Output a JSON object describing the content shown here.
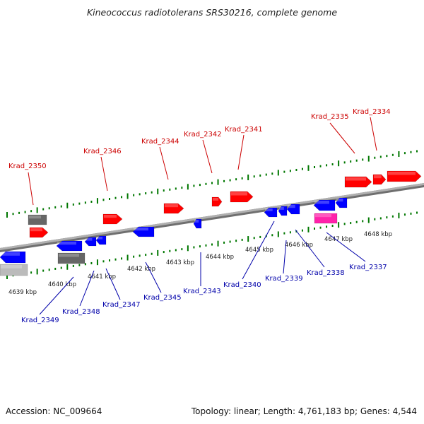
{
  "title": "Kineococcus radiotolerans SRS30216, complete genome",
  "footer": {
    "accession": "Accession: NC_009664",
    "summary": "Topology: linear; Length: 4,761,183 bp; Genes: 4,544"
  },
  "colors": {
    "forward_gene": "#ff0000",
    "reverse_gene": "#0000ff",
    "label_forward": "#cc0000",
    "label_reverse": "#0000aa",
    "ticks": "#007700",
    "backbone": "#888888",
    "rna_gray": "#666666",
    "rna_light": "#bbbbbb",
    "magenta": "#ff22aa"
  },
  "kbp_labels": [
    "4639 kbp",
    "4640 kbp",
    "4641 kbp",
    "4642 kbp",
    "4643 kbp",
    "4644 kbp",
    "4645 kbp",
    "4646 kbp",
    "4647 kbp",
    "4648 kbp"
  ],
  "genes_top": [
    "Krad_2350",
    "Krad_2346",
    "Krad_2344",
    "Krad_2342",
    "Krad_2341",
    "Krad_2335",
    "Krad_2334"
  ],
  "genes_bottom": [
    "Krad_2349",
    "Krad_2348",
    "Krad_2347",
    "Krad_2345",
    "Krad_2343",
    "Krad_2340",
    "Krad_2339",
    "Krad_2338",
    "Krad_2337"
  ]
}
